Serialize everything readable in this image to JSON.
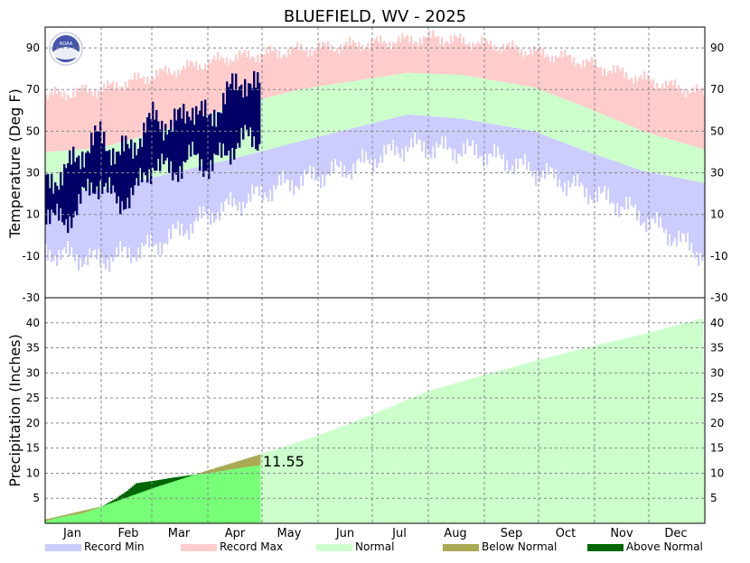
{
  "title": "BLUEFIELD, WV - 2025",
  "colors": {
    "record_min": "#ccccff",
    "record_max": "#ffcccc",
    "normal": "#ccffcc",
    "below_normal": "#aaaa55",
    "above_normal": "#006600",
    "observed_temp": "#000066",
    "observed_precip": "#77ff77",
    "grid": "#888888"
  },
  "logo": {
    "icon": "noaa-logo-icon",
    "text": "NOAA"
  },
  "chart_data": [
    {
      "type": "bar",
      "panel": "temperature",
      "ylabel": "Temperature (Deg F)",
      "ylim": [
        -30,
        100
      ],
      "yticks": [
        -30,
        -10,
        10,
        30,
        50,
        70,
        90
      ],
      "months": [
        "Jan",
        "Feb",
        "Mar",
        "Apr",
        "May",
        "Jun",
        "Jul",
        "Aug",
        "Sep",
        "Oct",
        "Nov",
        "Dec"
      ],
      "grid": true,
      "legend_placement": "bottom",
      "normal_high": {
        "x": [
          0,
          30,
          60,
          100,
          140,
          200,
          230,
          270,
          300,
          330,
          365
        ],
        "y": [
          40,
          42,
          49,
          61,
          70,
          78,
          77,
          71,
          61,
          50,
          41
        ]
      },
      "normal_low": {
        "x": [
          0,
          30,
          60,
          100,
          140,
          200,
          230,
          270,
          300,
          330,
          365
        ],
        "y": [
          21,
          22,
          28,
          36,
          45,
          58,
          56,
          50,
          40,
          31,
          25
        ]
      },
      "record_max": {
        "x": [
          0,
          30,
          60,
          100,
          140,
          190,
          215,
          250,
          290,
          330,
          365
        ],
        "y": [
          67,
          70,
          77,
          85,
          89,
          93,
          95,
          91,
          85,
          75,
          68
        ]
      },
      "record_min": {
        "x": [
          0,
          30,
          60,
          90,
          130,
          170,
          200,
          240,
          280,
          320,
          365
        ],
        "y": [
          -8,
          -12,
          -5,
          10,
          24,
          33,
          43,
          40,
          28,
          14,
          -10
        ]
      },
      "observed_through_day": 118,
      "observed_high_anchor": {
        "x": [
          0,
          10,
          20,
          30,
          40,
          50,
          60,
          70,
          80,
          90,
          100,
          110,
          118
        ],
        "y": [
          25,
          30,
          40,
          48,
          38,
          45,
          57,
          52,
          62,
          55,
          68,
          75,
          70
        ]
      },
      "observed_low_anchor": {
        "x": [
          0,
          10,
          20,
          30,
          40,
          50,
          60,
          70,
          80,
          90,
          100,
          110,
          118
        ],
        "y": [
          12,
          5,
          18,
          26,
          15,
          22,
          35,
          30,
          38,
          33,
          40,
          47,
          45
        ]
      }
    },
    {
      "type": "area",
      "panel": "precipitation",
      "ylabel": "Precipitation (Inches)",
      "ylim": [
        0,
        45
      ],
      "yticks": [
        5,
        10,
        15,
        20,
        25,
        30,
        35,
        40
      ],
      "months": [
        "Jan",
        "Feb",
        "Mar",
        "Apr",
        "May",
        "Jun",
        "Jul",
        "Aug",
        "Sep",
        "Oct",
        "Nov",
        "Dec"
      ],
      "normal_cumulative": {
        "x": [
          0,
          31,
          59,
          90,
          120,
          151,
          181,
          212,
          243,
          273,
          304,
          334,
          365
        ],
        "y": [
          0.8,
          3.4,
          7.0,
          10.6,
          13.9,
          17.5,
          21.7,
          26.4,
          29.6,
          32.6,
          35.4,
          38.0,
          41.0
        ]
      },
      "observed_cumulative": {
        "x": [
          0,
          5,
          12,
          20,
          30,
          38,
          45,
          50,
          60,
          70,
          80,
          90,
          100,
          110,
          118
        ],
        "y": [
          0.4,
          1.0,
          1.5,
          2.0,
          3.2,
          4.8,
          6.5,
          8.0,
          8.5,
          9.1,
          9.6,
          10.0,
          10.6,
          11.2,
          11.55
        ]
      },
      "last_value": 11.55,
      "last_value_label": "11.55"
    }
  ],
  "legend": [
    {
      "label": "Record Min",
      "color": "#ccccff"
    },
    {
      "label": "Record Max",
      "color": "#ffcccc"
    },
    {
      "label": "Normal",
      "color": "#ccffcc"
    },
    {
      "label": "Below Normal",
      "color": "#aaaa55"
    },
    {
      "label": "Above Normal",
      "color": "#006600"
    }
  ]
}
